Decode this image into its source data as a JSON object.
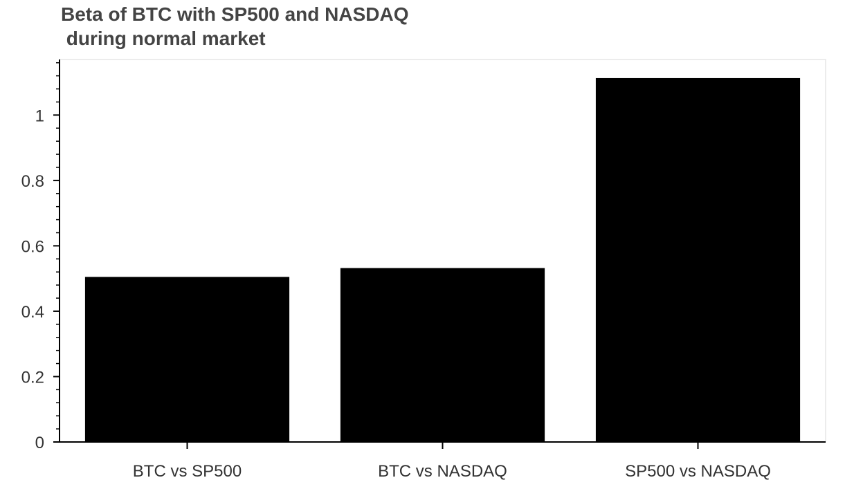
{
  "chart_data": {
    "type": "bar",
    "title": "Beta of BTC with SP500 and NASDAQ\n during normal market",
    "categories": [
      "BTC vs SP500",
      "BTC vs NASDAQ",
      "SP500 vs NASDAQ"
    ],
    "values": [
      0.505,
      0.532,
      1.113
    ],
    "xlabel": "",
    "ylabel": "",
    "ylim": [
      0,
      1.17
    ],
    "yticks": [
      0,
      0.2,
      0.4,
      0.6,
      0.8,
      1
    ],
    "ytick_labels": [
      "0",
      "0.2",
      "0.4",
      "0.6",
      "0.8",
      "1"
    ],
    "grid": false,
    "bar_color": "#000000",
    "axis_color": "#000000",
    "frame_color": "#e6e6e6"
  }
}
